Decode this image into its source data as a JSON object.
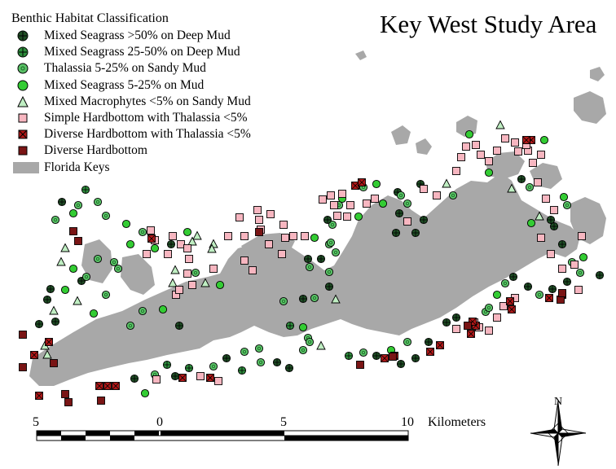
{
  "title": "Key West Study Area",
  "legend": {
    "title": "Benthic Habitat Classification",
    "items": [
      {
        "label": "Mixed Seagrass >50% on Deep Mud",
        "symbol": "circle-cross",
        "fill": "#1e4d24"
      },
      {
        "label": "Mixed Seagrass 25-50% on Deep Mud",
        "symbol": "circle-cross",
        "fill": "#2d8e3c"
      },
      {
        "label": "Thalassia  5-25% on Sandy Mud",
        "symbol": "circle-dot",
        "fill": "#59c066"
      },
      {
        "label": "Mixed Seagrass 5-25% on Mud",
        "symbol": "circle",
        "fill": "#33cc33"
      },
      {
        "label": "Mixed Macrophytes <5% on Sandy Mud",
        "symbol": "triangle",
        "fill": "#bfeec2"
      },
      {
        "label": "Simple Hardbottom with Thalassia <5%",
        "symbol": "square",
        "fill": "#f7b6c0"
      },
      {
        "label": "Diverse Hardbottom  with Thalassia <5%",
        "symbol": "square-x",
        "fill": "#b01818"
      },
      {
        "label": "Diverse Hardbottom",
        "symbol": "square",
        "fill": "#7a1515"
      },
      {
        "label": "Florida Keys",
        "symbol": "patch",
        "fill": "#a8a8a8"
      }
    ]
  },
  "scalebar": {
    "labels": [
      "5",
      "0",
      "5",
      "10"
    ],
    "unit": "Kilometers"
  },
  "north_arrow": {
    "label": "N"
  },
  "colors": {
    "land": "#a8a8a8",
    "background": "#ffffff"
  }
}
